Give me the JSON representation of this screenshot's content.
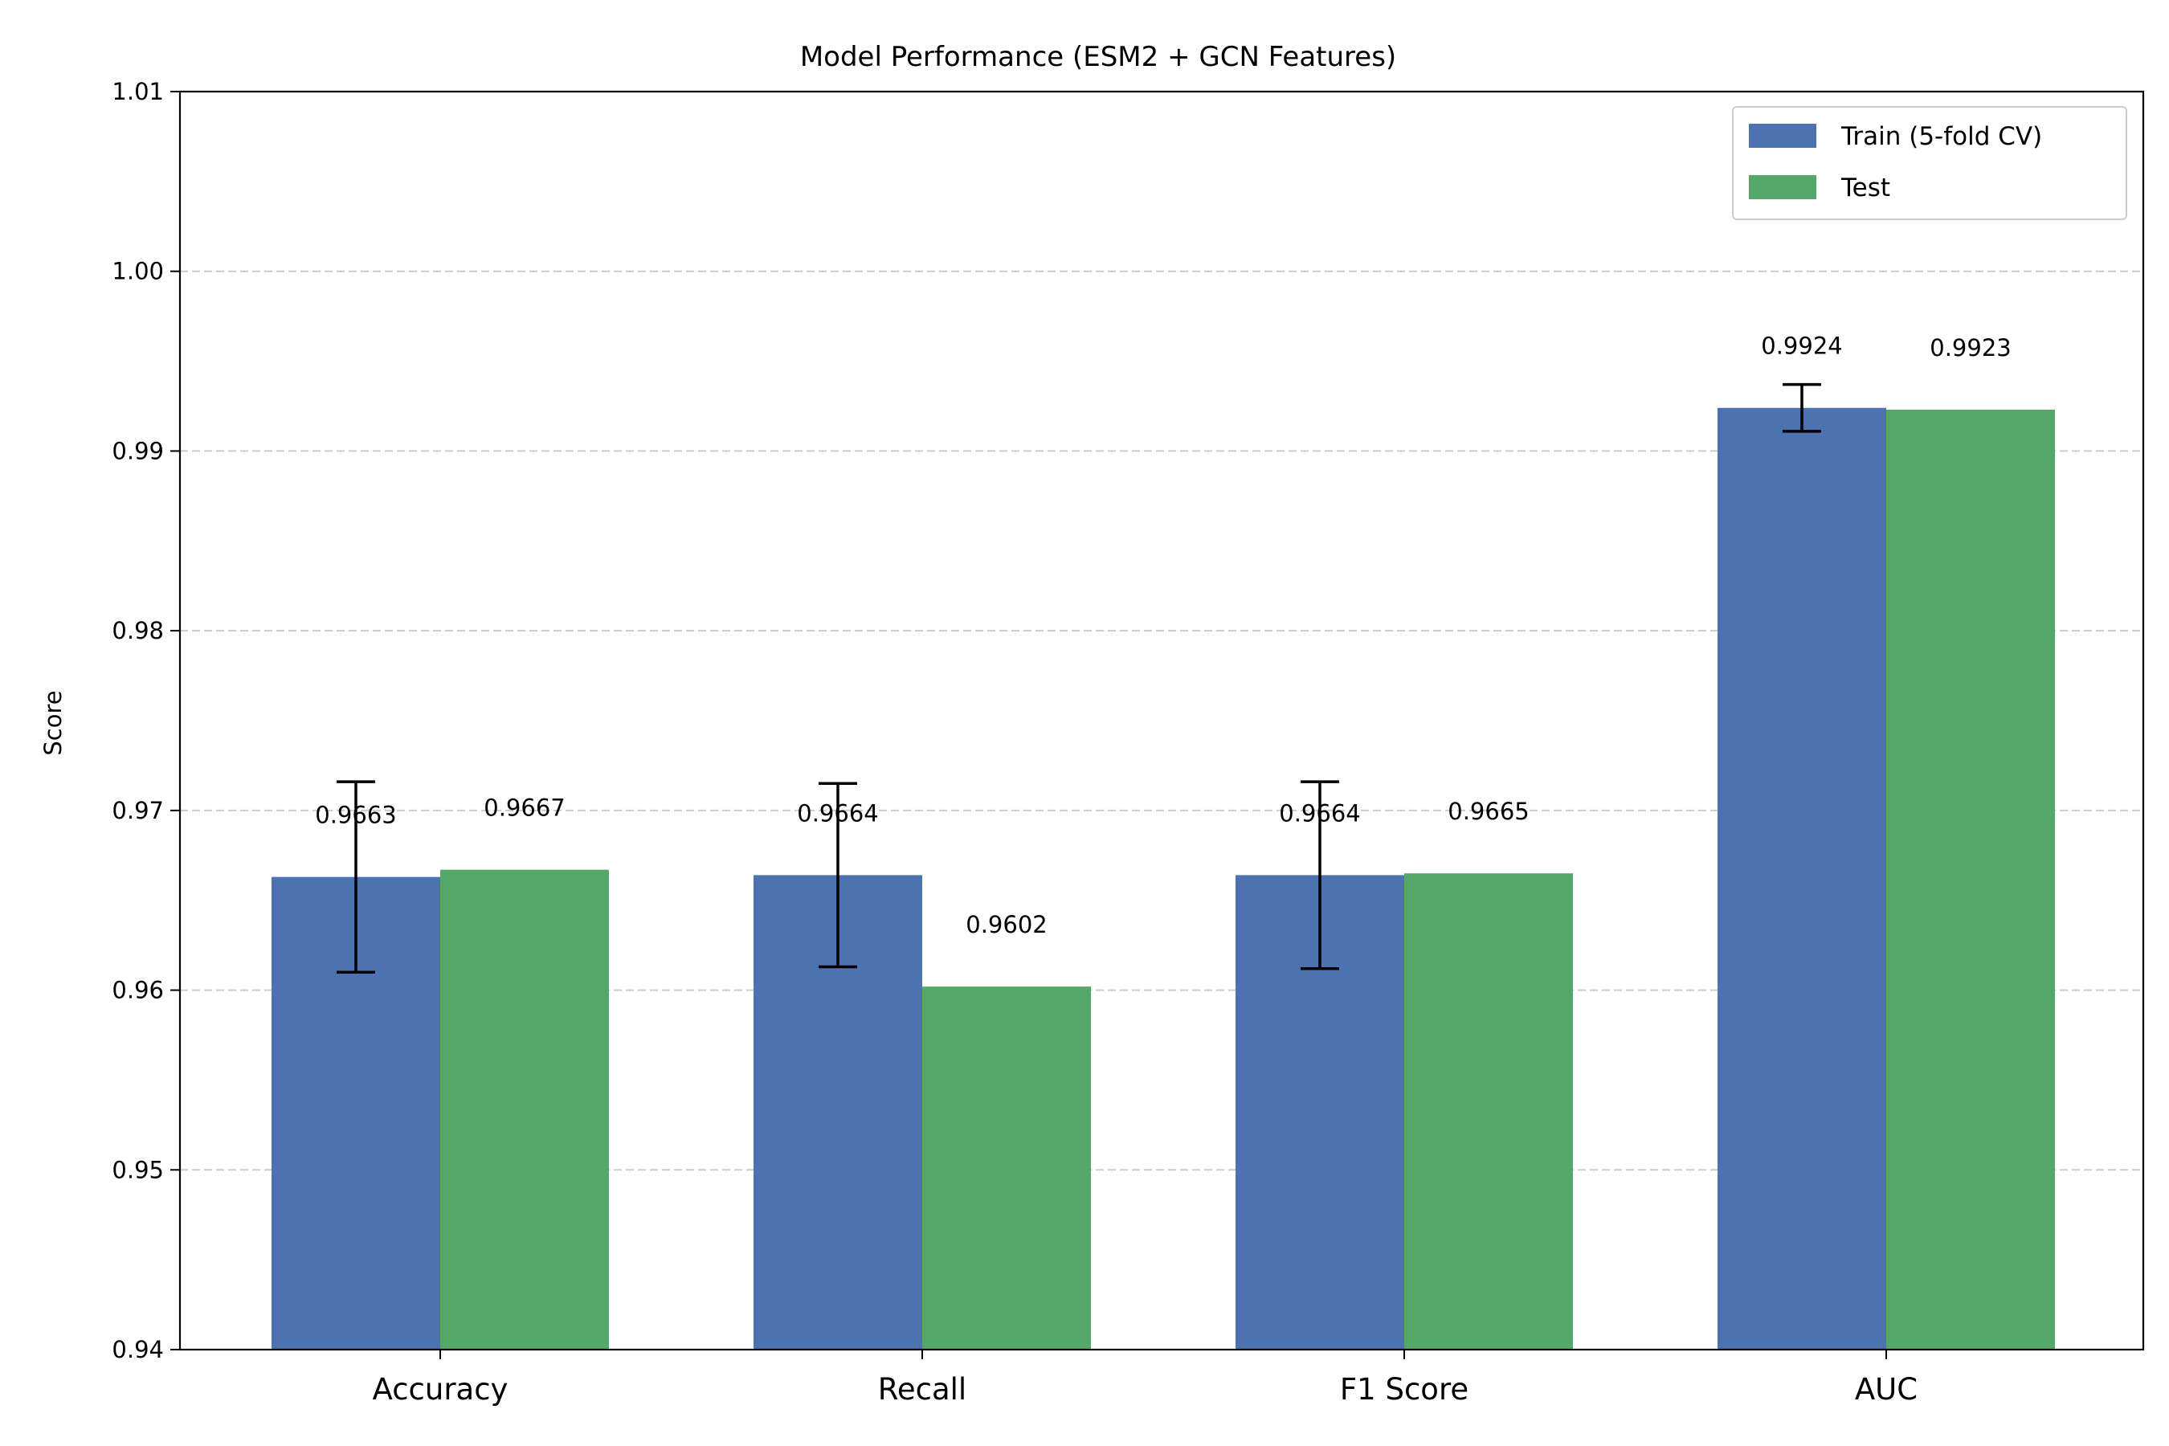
{
  "chart_data": {
    "type": "bar",
    "title": "Model Performance (ESM2 + GCN Features)",
    "xlabel": "",
    "ylabel": "Score",
    "categories": [
      "Accuracy",
      "Recall",
      "F1 Score",
      "AUC"
    ],
    "ylim": [
      0.94,
      1.01
    ],
    "yticks": [
      0.94,
      0.95,
      0.96,
      0.97,
      0.98,
      0.99,
      1.0,
      1.01
    ],
    "ytick_labels": [
      "0.94",
      "0.95",
      "0.96",
      "0.97",
      "0.98",
      "0.99",
      "1.00",
      "1.01"
    ],
    "grid": "y-dashed",
    "legend_position": "top-right",
    "series": [
      {
        "name": "Train (5-fold CV)",
        "color": "#4c72b0",
        "values": [
          0.9663,
          0.9664,
          0.9664,
          0.9924
        ],
        "labels": [
          "0.9663",
          "0.9664",
          "0.9664",
          "0.9924"
        ],
        "errors": [
          0.0053,
          0.0051,
          0.0052,
          0.0013
        ]
      },
      {
        "name": "Test",
        "color": "#55a868",
        "values": [
          0.9667,
          0.9602,
          0.9665,
          0.9923
        ],
        "labels": [
          "0.9667",
          "0.9602",
          "0.9665",
          "0.9923"
        ]
      }
    ]
  }
}
